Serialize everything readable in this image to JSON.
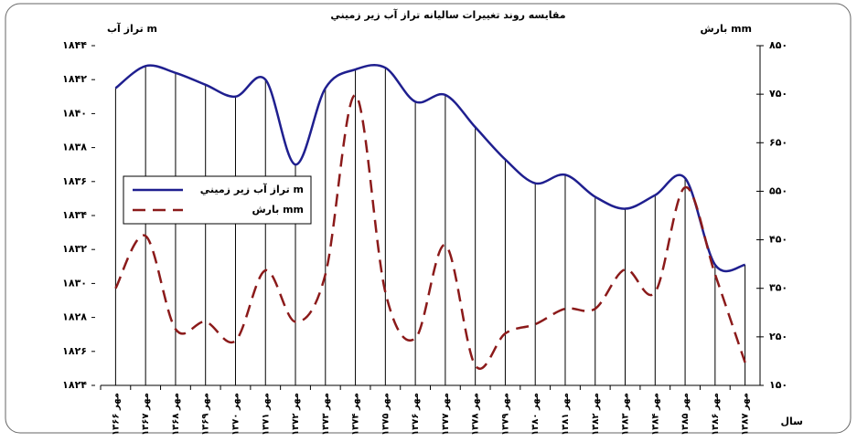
{
  "chart_data": {
    "type": "line",
    "title": "مقايسه روند تغييرات ساليانه تراز آب زير زميني",
    "y_label": "تراز آب m",
    "y2_label": "بارش mm",
    "x_label": "سال",
    "categories": [
      "مهر ۱۳۶۶",
      "مهر ۱۳۶۷",
      "مهر ۱۳۶۸",
      "مهر ۱۳۶۹",
      "مهر ۱۳۷۰",
      "مهر ۱۳۷۱",
      "مهر ۱۳۷۲",
      "مهر ۱۳۷۳",
      "مهر ۱۳۷۴",
      "مهر ۱۳۷۵",
      "مهر ۱۳۷۶",
      "مهر ۱۳۷۷",
      "مهر ۱۳۷۸",
      "مهر ۱۳۷۹",
      "مهر ۱۳۸۰",
      "مهر ۱۳۸۱",
      "مهر ۱۳۸۲",
      "مهر ۱۳۸۳",
      "مهر ۱۳۸۴",
      "مهر ۱۳۸۵",
      "مهر ۱۳۸۶",
      "مهر ۱۳۸۷"
    ],
    "series": [
      {
        "name": "تراز آب زير زميني m",
        "color": "#1f1f8f",
        "axis": "y",
        "dash": false,
        "values": [
          1841.5,
          1842.8,
          1842.4,
          1841.7,
          1841.0,
          1842.0,
          1837.0,
          1841.5,
          1842.6,
          1842.7,
          1840.7,
          1841.1,
          1839.2,
          1837.3,
          1835.9,
          1836.4,
          1835.1,
          1834.4,
          1835.2,
          1836.2,
          1831.1,
          1831.1
        ]
      },
      {
        "name": "بارش mm",
        "color": "#8b1a1a",
        "axis": "y2",
        "dash": true,
        "values": [
          350,
          458,
          266,
          281,
          242,
          387,
          281,
          379,
          748,
          342,
          247,
          439,
          191,
          257,
          276,
          308,
          308,
          389,
          342,
          558,
          379,
          197
        ]
      }
    ],
    "ylim": [
      1824,
      1844
    ],
    "yticks": [
      {
        "value": 1824,
        "label": "۱۸۲۴"
      },
      {
        "value": 1826,
        "label": "۱۸۲۶"
      },
      {
        "value": 1828,
        "label": "۱۸۲۸"
      },
      {
        "value": 1830,
        "label": "۱۸۳۰"
      },
      {
        "value": 1832,
        "label": "۱۸۳۲"
      },
      {
        "value": 1834,
        "label": "۱۸۳۴"
      },
      {
        "value": 1836,
        "label": "۱۸۳۶"
      },
      {
        "value": 1838,
        "label": "۱۸۳۸"
      },
      {
        "value": 1840,
        "label": "۱۸۴۰"
      },
      {
        "value": 1842,
        "label": "۱۸۴۲"
      },
      {
        "value": 1844,
        "label": "۱۸۴۴"
      }
    ],
    "y2lim": [
      150,
      850
    ],
    "y2ticks": [
      {
        "value": 150,
        "label": "۱۵۰"
      },
      {
        "value": 250,
        "label": "۲۵۰"
      },
      {
        "value": 350,
        "label": "۳۵۰"
      },
      {
        "value": 450,
        "label": "۴۵۰"
      },
      {
        "value": 550,
        "label": "۵۵۰"
      },
      {
        "value": 650,
        "label": "۶۵۰"
      },
      {
        "value": 750,
        "label": "۷۵۰"
      },
      {
        "value": 850,
        "label": "۸۵۰"
      }
    ],
    "drop_lines": true
  }
}
